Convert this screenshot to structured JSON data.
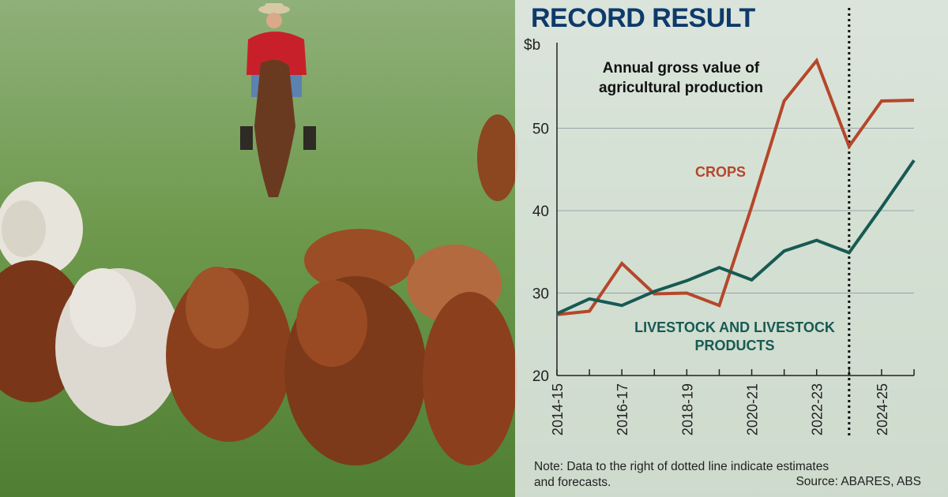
{
  "headline": "RECORD RESULT",
  "note": "Note: Data to the right of dotted line indicate estimates and forecasts.",
  "source": "Source: ABARES, ABS",
  "colors": {
    "headline": "#0e3a6b",
    "crops": "#b5472b",
    "livestock": "#175a54",
    "panel": "#eef1f4"
  },
  "chart_data": {
    "type": "line",
    "title": "Annual gross value of agricultural production",
    "ylabel": "$b",
    "ylim": [
      20,
      60
    ],
    "yticks": [
      20,
      30,
      40,
      50
    ],
    "x": [
      "2014-15",
      "2015-16",
      "2016-17",
      "2017-18",
      "2018-19",
      "2019-20",
      "2020-21",
      "2021-22",
      "2022-23",
      "2023-24",
      "2024-25",
      "2025-26"
    ],
    "xtick_labels": [
      "2014-15",
      "2016-17",
      "2018-19",
      "2020-21",
      "2022-23",
      "2024-25"
    ],
    "forecast_from": "2023-24",
    "series": [
      {
        "name": "CROPS",
        "values": [
          27.4,
          27.8,
          33.6,
          29.9,
          30.0,
          28.5,
          40.5,
          53.3,
          58.2,
          47.8,
          53.3,
          53.4
        ]
      },
      {
        "name": "LIVESTOCK AND LIVESTOCK PRODUCTS",
        "values": [
          27.5,
          29.3,
          28.5,
          30.2,
          31.5,
          33.1,
          31.6,
          35.1,
          36.4,
          34.9,
          40.4,
          46.1
        ]
      }
    ]
  }
}
